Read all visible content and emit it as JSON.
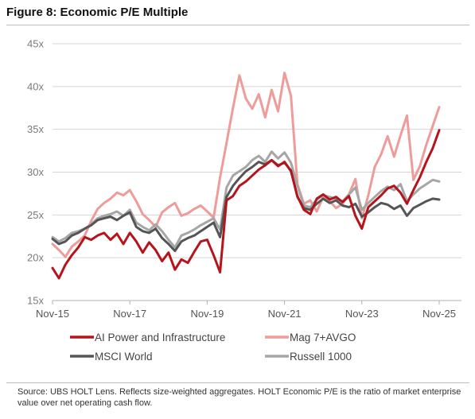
{
  "figure": {
    "title": "Figure 8: Economic P/E Multiple",
    "source": "Source: UBS HOLT Lens. Reflects size-weighted aggregates. HOLT Economic P/E is the ratio of market enterprise value over net operating cash flow."
  },
  "chart_data": {
    "type": "line",
    "title": "",
    "xlabel": "",
    "ylabel": "",
    "x_ticks": [
      "Nov-15",
      "Nov-17",
      "Nov-19",
      "Nov-21",
      "Nov-23",
      "Nov-25"
    ],
    "x_range": [
      "Nov-15",
      "Nov-25"
    ],
    "y_ticks": [
      "15x",
      "20x",
      "25x",
      "30x",
      "35x",
      "40x",
      "45x"
    ],
    "y_tick_values": [
      15,
      20,
      25,
      30,
      35,
      40,
      45
    ],
    "ylim": [
      15,
      45
    ],
    "grid": "horizontal",
    "legend_position": "bottom",
    "x_dates": [
      "2015-11",
      "2016-01",
      "2016-03",
      "2016-05",
      "2016-07",
      "2016-09",
      "2016-11",
      "2017-01",
      "2017-03",
      "2017-05",
      "2017-07",
      "2017-09",
      "2017-11",
      "2018-01",
      "2018-03",
      "2018-05",
      "2018-07",
      "2018-09",
      "2018-11",
      "2019-01",
      "2019-03",
      "2019-05",
      "2019-07",
      "2019-09",
      "2019-11",
      "2020-01",
      "2020-03",
      "2020-05",
      "2020-07",
      "2020-09",
      "2020-11",
      "2021-01",
      "2021-03",
      "2021-05",
      "2021-07",
      "2021-09",
      "2021-11",
      "2022-01",
      "2022-03",
      "2022-05",
      "2022-07",
      "2022-09",
      "2022-11",
      "2023-01",
      "2023-03",
      "2023-05",
      "2023-07",
      "2023-09",
      "2023-11",
      "2024-01",
      "2024-03",
      "2024-05",
      "2024-07",
      "2024-09",
      "2024-11",
      "2025-01",
      "2025-03",
      "2025-05",
      "2025-07",
      "2025-09",
      "2025-11"
    ],
    "series": [
      {
        "name": "AI Power and Infrastructure",
        "color": "#b5141c",
        "values": [
          18.8,
          17.6,
          19.2,
          20.3,
          21.2,
          22.4,
          22.1,
          22.6,
          22.9,
          22.1,
          22.8,
          21.6,
          22.9,
          21.9,
          20.6,
          21.8,
          20.9,
          19.6,
          20.6,
          18.6,
          19.8,
          19.4,
          20.7,
          21.9,
          22.1,
          20.3,
          18.3,
          26.7,
          27.2,
          28.4,
          28.9,
          29.6,
          30.3,
          30.8,
          31.4,
          30.7,
          31.2,
          30.1,
          27.2,
          25.6,
          25.1,
          26.9,
          27.4,
          26.8,
          27.1,
          26.5,
          27.2,
          24.9,
          23.4,
          25.9,
          26.6,
          27.3,
          28.1,
          28.4,
          27.6,
          26.3,
          27.9,
          29.4,
          31.2,
          32.8,
          34.9
        ]
      },
      {
        "name": "Mag 7+AVGO",
        "color": "#ee9c9a",
        "values": [
          21.6,
          20.9,
          20.1,
          21.3,
          21.9,
          22.6,
          24.3,
          25.7,
          26.4,
          26.9,
          27.6,
          27.3,
          27.9,
          26.6,
          25.1,
          24.4,
          23.6,
          25.3,
          25.9,
          26.4,
          24.9,
          25.2,
          25.7,
          26.1,
          25.4,
          24.7,
          29.4,
          33.4,
          37.5,
          41.3,
          38.6,
          37.4,
          39.1,
          36.4,
          39.6,
          37.1,
          41.6,
          38.9,
          28.6,
          26.3,
          26.7,
          25.4,
          27.1,
          26.6,
          25.8,
          26.3,
          27.4,
          29.2,
          24.6,
          27.3,
          30.6,
          32.1,
          34.2,
          31.8,
          34.3,
          36.6,
          29.1,
          30.7,
          33.2,
          35.4,
          37.6
        ]
      },
      {
        "name": "MSCI World",
        "color": "#555555",
        "values": [
          22.2,
          21.6,
          21.9,
          22.6,
          22.9,
          23.4,
          23.8,
          24.4,
          24.6,
          24.8,
          24.4,
          24.9,
          25.3,
          23.6,
          23.1,
          22.9,
          23.4,
          22.3,
          21.6,
          20.8,
          21.9,
          22.3,
          22.6,
          23.1,
          23.6,
          24.1,
          22.4,
          27.1,
          28.4,
          29.3,
          30.1,
          30.6,
          31.2,
          30.9,
          31.4,
          30.8,
          31.1,
          30.2,
          27.1,
          25.8,
          25.6,
          26.3,
          26.9,
          26.4,
          26.7,
          26.1,
          25.9,
          26.3,
          24.8,
          25.3,
          25.9,
          26.4,
          26.2,
          25.7,
          26.1,
          24.9,
          25.8,
          26.2,
          26.6,
          26.9,
          26.8
        ]
      },
      {
        "name": "Russell 1000",
        "color": "#a6a6a6",
        "values": [
          22.4,
          21.9,
          22.3,
          22.9,
          23.1,
          23.4,
          23.9,
          24.6,
          24.9,
          25.1,
          25.4,
          24.9,
          25.6,
          24.1,
          23.6,
          23.2,
          23.9,
          23.1,
          22.1,
          21.2,
          22.6,
          22.9,
          23.3,
          23.8,
          24.2,
          24.6,
          23.3,
          28.2,
          29.6,
          30.1,
          30.6,
          31.4,
          31.9,
          31.2,
          32.4,
          31.6,
          32.3,
          31.1,
          28.4,
          26.1,
          25.9,
          26.8,
          27.3,
          27.1,
          26.9,
          26.6,
          27.4,
          28.2,
          25.6,
          26.4,
          27.1,
          27.8,
          28.3,
          27.9,
          28.6,
          26.6,
          27.4,
          28.1,
          28.6,
          29.1,
          28.9
        ]
      }
    ]
  }
}
